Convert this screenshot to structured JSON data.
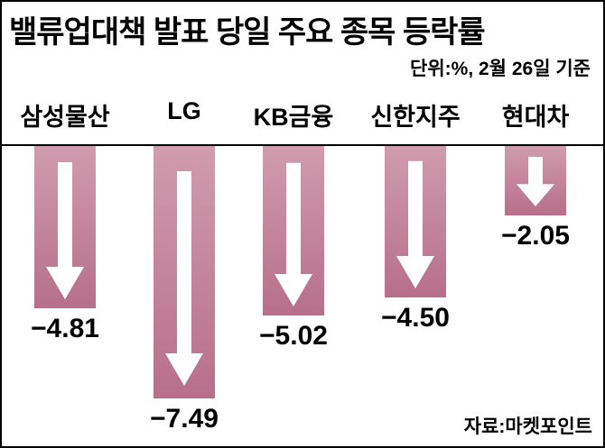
{
  "header": {
    "title": "밸류업대책 발표 당일 주요 종목 등락률",
    "subtitle": "단위:%, 2월 26일 기준"
  },
  "footer": {
    "source": "자료:마켓포인트"
  },
  "chart_data": {
    "type": "bar",
    "orientation": "vertical-downward",
    "title": "밸류업대책 발표 당일 주요 종목 등락률",
    "unit": "%",
    "as_of": "2월 26일 기준",
    "categories": [
      "삼성물산",
      "LG",
      "KB금융",
      "신한지주",
      "현대차"
    ],
    "values": [
      -4.81,
      -7.49,
      -5.02,
      -4.5,
      -2.05
    ],
    "value_labels": [
      "−4.81",
      "−7.49",
      "−5.02",
      "−4.50",
      "−2.05"
    ],
    "ylim": [
      0,
      -7.49
    ],
    "grid": false,
    "legend": "none",
    "bar_color_top": "#d09cae",
    "bar_color_bottom": "#b76f8a",
    "arrow_color": "#ffffff",
    "baseline_color": "#000000",
    "source": "자료:마켓포인트"
  }
}
